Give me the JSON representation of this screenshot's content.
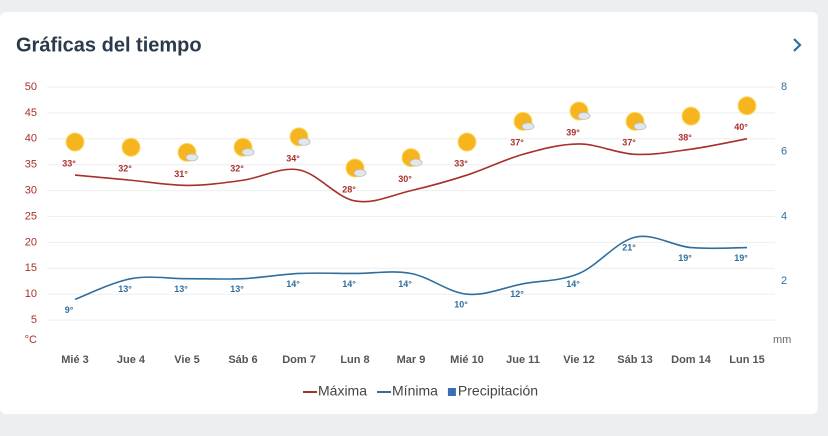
{
  "header": {
    "title": "Gráficas del tiempo"
  },
  "chart_data": {
    "type": "line",
    "categories": [
      "Mié 3",
      "Jue 4",
      "Vie 5",
      "Sáb 6",
      "Dom 7",
      "Lun 8",
      "Mar 9",
      "Mié 10",
      "Jue 11",
      "Vie 12",
      "Sáb 13",
      "Dom 14",
      "Lun 15"
    ],
    "series": [
      {
        "name": "Máxima",
        "color": "#a8302c",
        "values": [
          33,
          32,
          31,
          32,
          34,
          28,
          30,
          33,
          37,
          39,
          37,
          38,
          40
        ],
        "value_labels": [
          "33°",
          "32°",
          "31°",
          "32°",
          "34°",
          "28°",
          "30°",
          "33°",
          "37°",
          "39°",
          "37°",
          "38°",
          "40°"
        ]
      },
      {
        "name": "Mínima",
        "color": "#2f6f9f",
        "values": [
          9,
          13,
          13,
          13,
          14,
          14,
          14,
          10,
          12,
          14,
          21,
          19,
          19
        ],
        "value_labels": [
          "9°",
          "13°",
          "13°",
          "13°",
          "14°",
          "14°",
          "14°",
          "10°",
          "12°",
          "14°",
          "21°",
          "19°",
          "19°"
        ]
      },
      {
        "name": "Precipitación",
        "color": "#3a6fb5",
        "axis": "y2",
        "values": [
          0,
          0,
          0,
          0,
          0,
          0,
          0,
          0,
          0,
          0,
          0,
          0,
          0
        ]
      }
    ],
    "ylim": [
      0,
      50
    ],
    "yticks": [
      {
        "value": 0,
        "label": "°C"
      },
      5,
      10,
      15,
      20,
      25,
      30,
      35,
      40,
      45,
      50
    ],
    "y2lim": [
      0,
      8
    ],
    "y2ticks": [
      {
        "value": 0,
        "label": "mm"
      },
      2,
      4,
      6,
      8
    ],
    "grid": true
  }
}
